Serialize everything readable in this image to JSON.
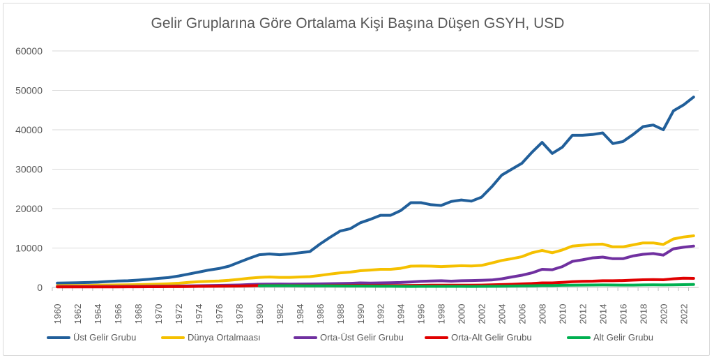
{
  "chart_data": {
    "type": "line",
    "title": "Gelir Gruplarına Göre Ortalama Kişi Başına Düşen GSYH, USD",
    "xlabel": "",
    "ylabel": "",
    "ylim": [
      0,
      60000
    ],
    "yticks": [
      "0",
      "10000",
      "20000",
      "30000",
      "40000",
      "50000",
      "60000"
    ],
    "x": [
      1960,
      1961,
      1962,
      1963,
      1964,
      1965,
      1966,
      1967,
      1968,
      1969,
      1970,
      1971,
      1972,
      1973,
      1974,
      1975,
      1976,
      1977,
      1978,
      1979,
      1980,
      1981,
      1982,
      1983,
      1984,
      1985,
      1986,
      1987,
      1988,
      1989,
      1990,
      1991,
      1992,
      1993,
      1994,
      1995,
      1996,
      1997,
      1998,
      1999,
      2000,
      2001,
      2002,
      2003,
      2004,
      2005,
      2006,
      2007,
      2008,
      2009,
      2010,
      2011,
      2012,
      2013,
      2014,
      2015,
      2016,
      2017,
      2018,
      2019,
      2020,
      2021,
      2022,
      2023
    ],
    "xticks": [
      "1960",
      "1962",
      "1964",
      "1966",
      "1968",
      "1970",
      "1972",
      "1974",
      "1976",
      "1978",
      "1980",
      "1982",
      "1984",
      "1986",
      "1988",
      "1990",
      "1992",
      "1994",
      "1996",
      "1998",
      "2000",
      "2002",
      "2004",
      "2006",
      "2008",
      "2010",
      "2012",
      "2014",
      "2016",
      "2018",
      "2020",
      "2022"
    ],
    "grid": "horizontal",
    "legend": "bottom",
    "series": [
      {
        "name": "Üst Gelir Grubu",
        "color": "#215f9a",
        "values": [
          1100,
          1150,
          1200,
          1250,
          1350,
          1500,
          1650,
          1700,
          1850,
          2050,
          2300,
          2500,
          2900,
          3400,
          3900,
          4400,
          4800,
          5400,
          6400,
          7400,
          8300,
          8500,
          8300,
          8500,
          8800,
          9100,
          11000,
          12700,
          14300,
          14900,
          16400,
          17300,
          18300,
          18300,
          19500,
          21500,
          21500,
          21000,
          20800,
          21800,
          22200,
          21900,
          22900,
          25500,
          28500,
          30000,
          31500,
          34300,
          36800,
          34000,
          35600,
          38600,
          38600,
          38800,
          39200,
          36500,
          37000,
          38800,
          40800,
          41200,
          40000,
          44800,
          46300,
          48300
        ]
      },
      {
        "name": "Dünya Ortalmaası",
        "color": "#f5c000",
        "values": [
          450,
          470,
          490,
          520,
          560,
          600,
          640,
          670,
          710,
          780,
          850,
          930,
          1060,
          1270,
          1450,
          1550,
          1630,
          1800,
          2050,
          2350,
          2550,
          2650,
          2550,
          2550,
          2650,
          2750,
          3050,
          3400,
          3700,
          3900,
          4250,
          4400,
          4600,
          4600,
          4850,
          5400,
          5450,
          5400,
          5300,
          5400,
          5500,
          5450,
          5600,
          6200,
          6850,
          7300,
          7800,
          8800,
          9400,
          8800,
          9500,
          10500,
          10700,
          10900,
          11000,
          10300,
          10300,
          10800,
          11300,
          11300,
          10900,
          12300,
          12800,
          13100
        ]
      },
      {
        "name": "Orta-Üst Gelir Grubu",
        "color": "#7030a0",
        "values": [
          200,
          205,
          210,
          220,
          230,
          240,
          250,
          260,
          270,
          285,
          300,
          320,
          350,
          400,
          450,
          500,
          530,
          560,
          620,
          720,
          820,
          850,
          860,
          850,
          860,
          880,
          900,
          950,
          1000,
          1050,
          1150,
          1100,
          1150,
          1200,
          1250,
          1400,
          1550,
          1650,
          1700,
          1600,
          1700,
          1750,
          1800,
          1900,
          2200,
          2650,
          3100,
          3700,
          4600,
          4500,
          5300,
          6600,
          7000,
          7500,
          7700,
          7300,
          7300,
          8000,
          8400,
          8600,
          8200,
          9800,
          10200,
          10500
        ]
      },
      {
        "name": "Orta-Alt Gelir Grubu",
        "color": "#e00000",
        "values": [
          120,
          125,
          130,
          135,
          140,
          145,
          150,
          155,
          160,
          170,
          180,
          190,
          200,
          230,
          270,
          290,
          300,
          330,
          360,
          420,
          480,
          500,
          490,
          480,
          470,
          460,
          450,
          470,
          480,
          500,
          520,
          480,
          470,
          470,
          490,
          510,
          530,
          560,
          560,
          560,
          580,
          590,
          600,
          650,
          720,
          800,
          900,
          1000,
          1150,
          1150,
          1300,
          1450,
          1550,
          1600,
          1700,
          1700,
          1750,
          1850,
          1950,
          2000,
          1950,
          2200,
          2350,
          2300
        ]
      },
      {
        "name": "Alt Gelir Grubu",
        "color": "#00b050",
        "values": [
          null,
          null,
          null,
          null,
          null,
          null,
          null,
          null,
          null,
          null,
          null,
          null,
          null,
          null,
          null,
          null,
          null,
          null,
          null,
          null,
          420,
          440,
          450,
          440,
          420,
          410,
          400,
          390,
          380,
          360,
          350,
          340,
          320,
          300,
          260,
          250,
          260,
          270,
          270,
          270,
          260,
          250,
          260,
          280,
          310,
          350,
          390,
          430,
          490,
          500,
          540,
          580,
          600,
          620,
          630,
          620,
          600,
          610,
          640,
          660,
          640,
          680,
          700,
          760
        ]
      }
    ]
  }
}
